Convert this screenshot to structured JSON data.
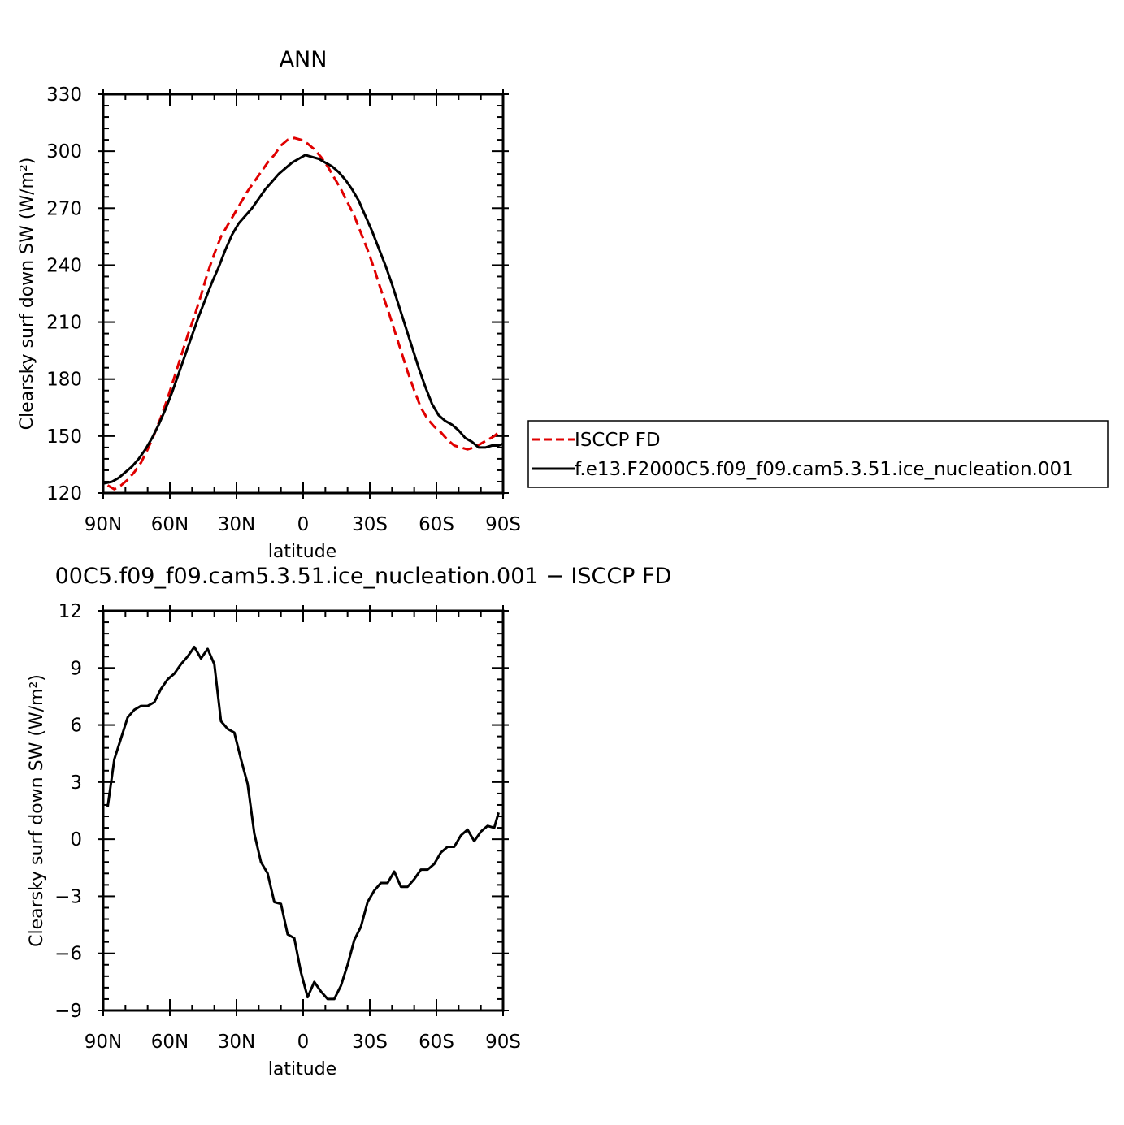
{
  "chart_data": [
    {
      "type": "line",
      "title": "ANN",
      "xlabel": "latitude",
      "ylabel": "Clearsky surf down SW (W/m²)",
      "xlim": [
        90,
        -90
      ],
      "ylim": [
        120,
        330
      ],
      "x_ticks": [
        {
          "value": 90,
          "label": "90N"
        },
        {
          "value": 60,
          "label": "60N"
        },
        {
          "value": 30,
          "label": "30N"
        },
        {
          "value": 0,
          "label": "0"
        },
        {
          "value": -30,
          "label": "30S"
        },
        {
          "value": -60,
          "label": "60S"
        },
        {
          "value": -90,
          "label": "90S"
        }
      ],
      "y_ticks": [
        {
          "value": 120,
          "label": "120"
        },
        {
          "value": 150,
          "label": "150"
        },
        {
          "value": 180,
          "label": "180"
        },
        {
          "value": 210,
          "label": "210"
        },
        {
          "value": 240,
          "label": "240"
        },
        {
          "value": 270,
          "label": "270"
        },
        {
          "value": 300,
          "label": "300"
        },
        {
          "value": 330,
          "label": "330"
        }
      ],
      "legend": "right",
      "series": [
        {
          "name": "ISCCP FD",
          "color": "#e00000",
          "dash": "dashed",
          "x": [
            88,
            85,
            82,
            79,
            76,
            73,
            70,
            67,
            64,
            61,
            58,
            55,
            52,
            49,
            46,
            43,
            40,
            37,
            34,
            31,
            28,
            25,
            22,
            19,
            16,
            13,
            10,
            7,
            4,
            1,
            -2,
            -5,
            -8,
            -11,
            -14,
            -17,
            -20,
            -23,
            -26,
            -29,
            -32,
            -35,
            -38,
            -41,
            -44,
            -47,
            -50,
            -53,
            -56,
            -59,
            -62,
            -65,
            -68,
            -71,
            -74,
            -77,
            -80,
            -83,
            -86,
            -88
          ],
          "y": [
            124,
            122,
            124,
            127,
            131,
            136,
            143,
            151,
            160,
            170,
            181,
            192,
            203,
            213,
            224,
            236,
            246,
            255,
            261,
            267,
            273,
            279,
            284,
            289,
            294,
            298,
            303,
            306,
            307,
            306,
            304,
            301,
            297,
            292,
            286,
            280,
            273,
            266,
            257,
            248,
            238,
            227,
            217,
            206,
            195,
            184,
            174,
            165,
            159,
            155,
            152,
            148,
            145,
            144,
            143,
            144,
            146,
            148,
            150,
            152
          ],
          "xy_note_unused": ""
        },
        {
          "name": "f.e13.F2000C5.f09_f09.cam5.3.51.ice_nucleation.001",
          "color": "#000000",
          "dash": "solid",
          "x": [
            90,
            86,
            83,
            80,
            77,
            74,
            71,
            68,
            65,
            62,
            59,
            56,
            53,
            50,
            47,
            44,
            41,
            38,
            35,
            32,
            29,
            26,
            23,
            20,
            17,
            14,
            11,
            8,
            5,
            2,
            -1,
            -4,
            -7,
            -10,
            -13,
            -16,
            -19,
            -22,
            -25,
            -28,
            -31,
            -34,
            -37,
            -40,
            -43,
            -46,
            -49,
            -52,
            -55,
            -58,
            -61,
            -64,
            -67,
            -70,
            -73,
            -76,
            -79,
            -82,
            -85,
            -88,
            -90
          ],
          "y": [
            125,
            126,
            128,
            131,
            134,
            138,
            143,
            149,
            156,
            164,
            173,
            183,
            193,
            203,
            213,
            222,
            231,
            239,
            248,
            256,
            262,
            266,
            270,
            275,
            280,
            284,
            288,
            291,
            294,
            296,
            298,
            297,
            296,
            294,
            292,
            289,
            285,
            280,
            274,
            266,
            258,
            249,
            240,
            230,
            219,
            208,
            197,
            186,
            176,
            167,
            161,
            158,
            156,
            153,
            149,
            147,
            144,
            144,
            145,
            145,
            146
          ]
        }
      ]
    },
    {
      "type": "line",
      "title": "00C5.f09_f09.cam5.3.51.ice_nucleation.001 − ISCCP FD",
      "xlabel": "latitude",
      "ylabel": "Clearsky surf down SW (W/m²)",
      "xlim": [
        90,
        -90
      ],
      "ylim": [
        -9,
        12
      ],
      "x_ticks": [
        {
          "value": 90,
          "label": "90N"
        },
        {
          "value": 60,
          "label": "60N"
        },
        {
          "value": 30,
          "label": "30N"
        },
        {
          "value": 0,
          "label": "0"
        },
        {
          "value": -30,
          "label": "30S"
        },
        {
          "value": -60,
          "label": "60S"
        },
        {
          "value": -90,
          "label": "90S"
        }
      ],
      "y_ticks": [
        {
          "value": -9,
          "label": "−9"
        },
        {
          "value": -6,
          "label": "−6"
        },
        {
          "value": -3,
          "label": "−3"
        },
        {
          "value": 0,
          "label": "0"
        },
        {
          "value": 3,
          "label": "3"
        },
        {
          "value": 6,
          "label": "6"
        },
        {
          "value": 9,
          "label": "9"
        },
        {
          "value": 12,
          "label": "12"
        }
      ],
      "series": [
        {
          "color": "#000000",
          "dash": "solid",
          "x": [
            88,
            85,
            82,
            79,
            76,
            73,
            70,
            67,
            64,
            61,
            58,
            55,
            52,
            49,
            46,
            43,
            40,
            37,
            34,
            31,
            28,
            25,
            22,
            19,
            16,
            13,
            10,
            7,
            4,
            1,
            -2,
            -5,
            -8,
            -11,
            -14,
            -17,
            -20,
            -23,
            -26,
            -29,
            -32,
            -35,
            -38,
            -41,
            -44,
            -47,
            -50,
            -53,
            -56,
            -59,
            -62,
            -65,
            -68,
            -71,
            -74,
            -77,
            -80,
            -83,
            -86,
            -88
          ],
          "y": [
            1.7,
            4.2,
            5.3,
            6.4,
            6.8,
            7.0,
            7.0,
            7.2,
            7.9,
            8.4,
            8.7,
            9.2,
            9.6,
            10.1,
            9.5,
            10.0,
            9.2,
            6.2,
            5.8,
            5.6,
            4.2,
            2.9,
            0.3,
            -1.2,
            -1.8,
            -3.3,
            -3.4,
            -5.0,
            -5.2,
            -7.0,
            -8.3,
            -7.5,
            -8.0,
            -8.4,
            -8.4,
            -7.7,
            -6.6,
            -5.3,
            -4.6,
            -3.3,
            -2.7,
            -2.3,
            -2.3,
            -1.7,
            -2.5,
            -2.5,
            -2.1,
            -1.6,
            -1.6,
            -1.3,
            -0.7,
            -0.4,
            -0.4,
            0.2,
            0.5,
            -0.1,
            0.4,
            0.7,
            0.6,
            1.4
          ]
        }
      ]
    }
  ],
  "legend": {
    "items": [
      {
        "label": "ISCCP FD",
        "color": "#e00000",
        "dash": "dashed"
      },
      {
        "label": "f.e13.F2000C5.f09_f09.cam5.3.51.ice_nucleation.001",
        "color": "#000000",
        "dash": "solid"
      }
    ]
  }
}
